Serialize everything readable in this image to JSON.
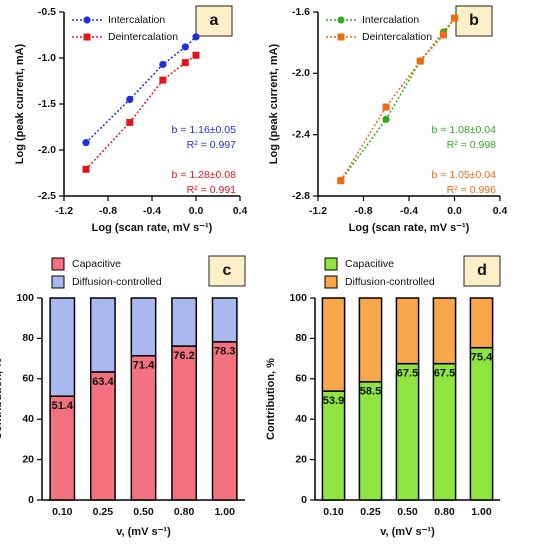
{
  "chart_data": [
    {
      "type": "line",
      "panel": "a",
      "xlabel": "Log (scan rate, mV s⁻¹)",
      "ylabel": "Log (peak current, mA)",
      "xlim": [
        -1.2,
        0.4
      ],
      "xticks": [
        -1.2,
        -0.8,
        -0.4,
        {
          "value": 0,
          "label": "0.0"
        },
        0.4
      ],
      "ylim": [
        -2.5,
        -0.5
      ],
      "yticks": [
        -2.5,
        {
          "value": -2,
          "label": "-2.0"
        },
        -1.5,
        {
          "value": -1,
          "label": "-1.0"
        },
        -0.5
      ],
      "x": [
        -1,
        -0.602,
        -0.301,
        -0.097,
        0
      ],
      "series": [
        {
          "name": "Intercalation",
          "color": "#1f2fe0",
          "values": [
            -1.92,
            -1.45,
            -1.07,
            -0.88,
            -0.77
          ]
        },
        {
          "name": "Deintercalation",
          "color": "#e8141c",
          "values": [
            -2.21,
            -1.7,
            -1.24,
            -1.05,
            -0.97
          ]
        }
      ],
      "annotations": [
        {
          "text": "b = 1.16±0.05",
          "color": "#1f2fe0"
        },
        {
          "text": "R² = 0.997",
          "color": "#1f2fe0"
        },
        {
          "text": "b = 1.28±0.08",
          "color": "#e8141c"
        },
        {
          "text": "R² = 0.991",
          "color": "#e8141c"
        }
      ]
    },
    {
      "type": "line",
      "panel": "b",
      "xlabel": "Log (scan rate, mV s⁻¹)",
      "ylabel": "Log (peak current, mA)",
      "xlim": [
        -1.2,
        0.4
      ],
      "xticks": [
        -1.2,
        -0.8,
        -0.4,
        {
          "value": 0,
          "label": "0.0"
        },
        0.4
      ],
      "ylim": [
        -2.8,
        -1.6
      ],
      "yticks": [
        -2.8,
        -2.4,
        {
          "value": -2,
          "label": "-2.0"
        },
        -1.6
      ],
      "x": [
        -1,
        -0.602,
        -0.301,
        -0.097,
        0
      ],
      "series": [
        {
          "name": "Intercalation",
          "color": "#2eaa1e",
          "values": [
            -2.7,
            -2.3,
            -1.92,
            -1.73,
            -1.64
          ]
        },
        {
          "name": "Deintercalation",
          "color": "#ef6a12",
          "values": [
            -2.7,
            -2.22,
            -1.92,
            -1.75,
            -1.64
          ]
        }
      ],
      "annotations": [
        {
          "text": "b = 1.08±0.04",
          "color": "#2eaa1e"
        },
        {
          "text": "R² = 0.998",
          "color": "#2eaa1e"
        },
        {
          "text": "b = 1.05±0.04",
          "color": "#ef6a12"
        },
        {
          "text": "R² = 0.996",
          "color": "#ef6a12"
        }
      ]
    },
    {
      "type": "bar",
      "panel": "c",
      "stacked": true,
      "xlabel": "v, (mV s⁻¹)",
      "ylabel": "Contribution, %",
      "categories": [
        "0.10",
        "0.25",
        "0.50",
        "0.80",
        "1.00"
      ],
      "ylim": [
        0,
        100
      ],
      "yticks": [
        0,
        20,
        40,
        60,
        80,
        100
      ],
      "series": [
        {
          "name": "Capacitive",
          "color": "#f4717f",
          "values": [
            51.4,
            63.4,
            71.4,
            76.2,
            78.3
          ]
        },
        {
          "name": "Diffusion-controlled",
          "color": "#a9b8ef",
          "values": [
            48.6,
            36.6,
            28.6,
            23.8,
            21.7
          ]
        }
      ]
    },
    {
      "type": "bar",
      "panel": "d",
      "stacked": true,
      "xlabel": "v, (mV s⁻¹)",
      "ylabel": "Contribution, %",
      "categories": [
        "0.10",
        "0.25",
        "0.50",
        "0.80",
        "1.00"
      ],
      "ylim": [
        0,
        100
      ],
      "yticks": [
        0,
        20,
        40,
        60,
        80,
        100
      ],
      "series": [
        {
          "name": "Capacitive",
          "color": "#8ee53f",
          "values": [
            53.9,
            58.5,
            67.5,
            67.5,
            75.4
          ]
        },
        {
          "name": "Diffusion-controlled",
          "color": "#f8a64a",
          "values": [
            46.1,
            41.5,
            32.5,
            32.5,
            24.6
          ]
        }
      ]
    }
  ]
}
